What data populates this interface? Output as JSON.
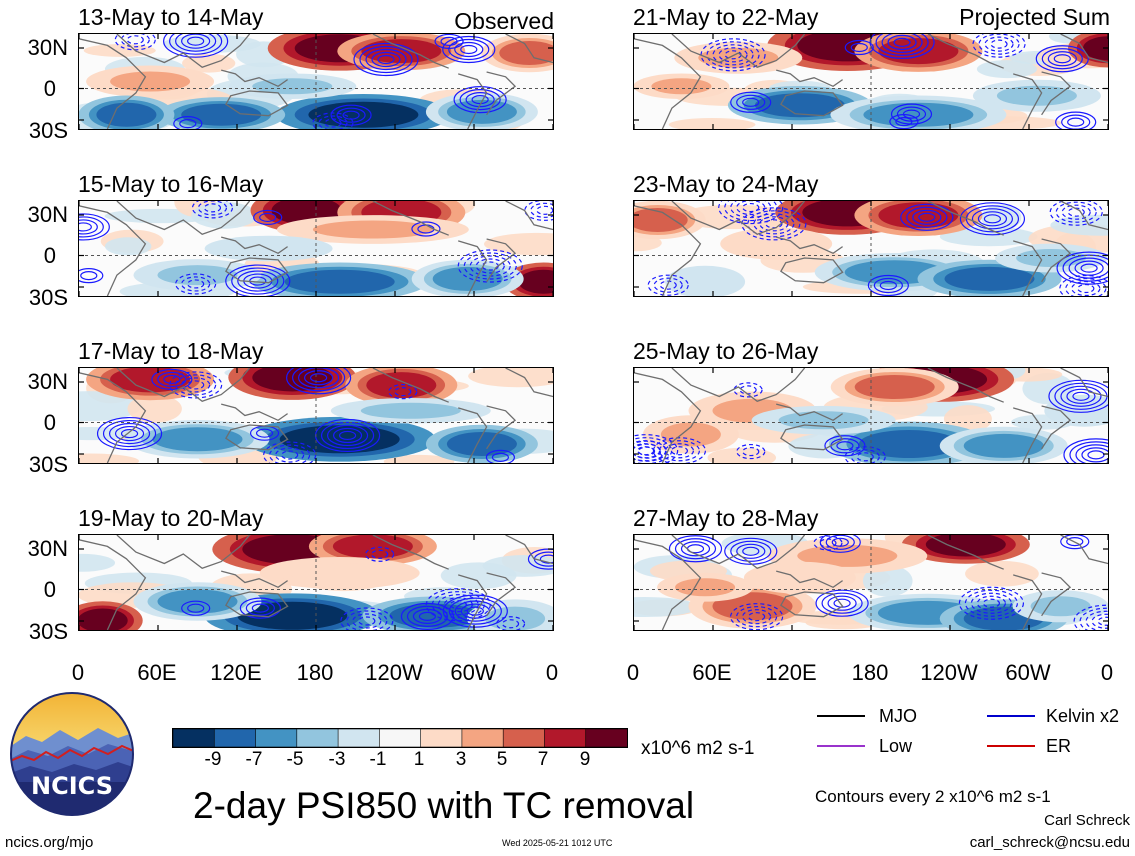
{
  "panels": [
    {
      "title": "13-May to 14-May",
      "corner": "Observed"
    },
    {
      "title": "15-May to 16-May",
      "corner": ""
    },
    {
      "title": "17-May to 18-May",
      "corner": ""
    },
    {
      "title": "19-May to 20-May",
      "corner": ""
    },
    {
      "title": "21-May to 22-May",
      "corner": "Projected Sum"
    },
    {
      "title": "23-May to 24-May",
      "corner": ""
    },
    {
      "title": "25-May to 26-May",
      "corner": ""
    },
    {
      "title": "27-May to 28-May",
      "corner": ""
    }
  ],
  "lat_labels": [
    "30N",
    "0",
    "30S"
  ],
  "lon_labels": [
    "0",
    "60E",
    "120E",
    "180",
    "120W",
    "60W",
    "0"
  ],
  "colorbar": {
    "ticks": [
      "-9",
      "-7",
      "-5",
      "-3",
      "-1",
      "1",
      "3",
      "5",
      "7",
      "9"
    ],
    "colors": [
      "#053061",
      "#2166ac",
      "#4393c3",
      "#92c5de",
      "#d1e5f0",
      "#f7f7f7",
      "#fddbc7",
      "#f4a582",
      "#d6604d",
      "#b2182b",
      "#67001f"
    ],
    "units": "x10^6 m2 s-1"
  },
  "legend": [
    {
      "label": "MJO",
      "color": "#000000"
    },
    {
      "label": "Kelvin x2",
      "color": "#0000cc"
    },
    {
      "label": "Low",
      "color": "#9933cc"
    },
    {
      "label": "ER",
      "color": "#cc0000"
    }
  ],
  "logo_text": "NCICS",
  "main_title": "2-day PSI850 with TC removal",
  "contour_note": "Contours every 2 x10^6 m2 s-1",
  "author": "Carl Schreck",
  "website": "ncics.org/mjo",
  "timestamp": "Wed 2025-05-21 1012 UTC",
  "email": "carl_schreck@ncsu.edu",
  "chart_data": {
    "type": "heatmap",
    "title": "2-day PSI850 with TC removal",
    "variable": "PSI850",
    "units": "x10^6 m2 s-1",
    "x_ticks": [
      "0",
      "60E",
      "120E",
      "180",
      "120W",
      "60W",
      "0"
    ],
    "y_ticks": [
      "30N",
      "0",
      "30S"
    ],
    "color_levels": [
      -9,
      -7,
      -5,
      -3,
      -1,
      1,
      3,
      5,
      7,
      9
    ],
    "contour_interval": 2,
    "contour_series": [
      "MJO",
      "Kelvin x2",
      "Low",
      "ER"
    ],
    "panel_periods": [
      "13-May to 14-May",
      "15-May to 16-May",
      "17-May to 18-May",
      "19-May to 20-May",
      "21-May to 22-May",
      "23-May to 24-May",
      "25-May to 26-May",
      "27-May to 28-May"
    ]
  }
}
